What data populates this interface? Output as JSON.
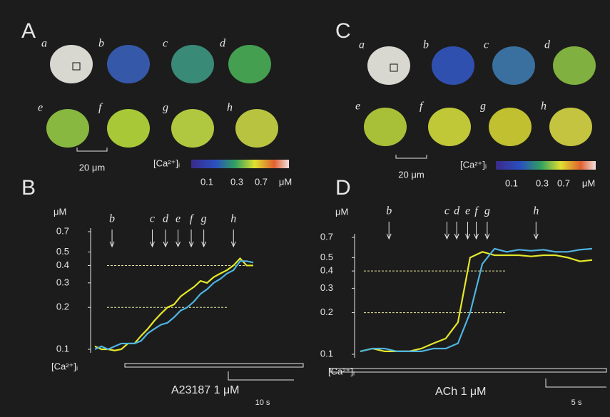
{
  "image_panels": [
    {
      "panel": "A",
      "cell_labels": [
        "a",
        "b",
        "c",
        "d",
        "e",
        "f",
        "g",
        "h"
      ],
      "scale_bar_label": "20 μm",
      "colorbar_label": "[Ca²⁺]ᵢ",
      "colorbar_ticks": [
        "0.1",
        "0.3",
        "0.7",
        "μM"
      ]
    },
    {
      "panel": "C",
      "cell_labels": [
        "a",
        "b",
        "c",
        "d",
        "e",
        "f",
        "g",
        "h"
      ],
      "scale_bar_label": "20 μm",
      "colorbar_label": "[Ca²⁺]ᵢ",
      "colorbar_ticks": [
        "0.1",
        "0.3",
        "0.7",
        "μM"
      ]
    }
  ],
  "chart_data": [
    {
      "type": "line",
      "panel": "B",
      "ylabel": "μM",
      "ylabel_bottom": "[Ca²⁺]ᵢ",
      "log_y": true,
      "ylim": [
        0.1,
        0.7
      ],
      "yticks": [
        0.1,
        0.2,
        0.3,
        0.4,
        0.5,
        0.7
      ],
      "xlim": [
        0,
        24
      ],
      "x": [
        0,
        1,
        2,
        3,
        4,
        5,
        6,
        7,
        8,
        9,
        10,
        11,
        12,
        13,
        14,
        15,
        16,
        17,
        18,
        19,
        20,
        21,
        22,
        23,
        24
      ],
      "series": [
        {
          "color": "#e4e82a",
          "values": [
            0.105,
            0.1,
            0.1,
            0.098,
            0.1,
            0.11,
            0.11,
            0.125,
            0.14,
            0.16,
            0.18,
            0.2,
            0.21,
            0.24,
            0.26,
            0.28,
            0.31,
            0.3,
            0.33,
            0.35,
            0.37,
            0.4,
            0.45,
            0.4,
            0.4
          ]
        },
        {
          "color": "#4fb4e0",
          "values": [
            0.1,
            0.105,
            0.1,
            0.105,
            0.11,
            0.11,
            0.11,
            0.115,
            0.13,
            0.14,
            0.15,
            0.155,
            0.17,
            0.19,
            0.2,
            0.22,
            0.25,
            0.27,
            0.3,
            0.32,
            0.35,
            0.37,
            0.43,
            0.43,
            0.42
          ]
        }
      ],
      "reference_lines": [
        0.4,
        0.2
      ],
      "annotations": [
        {
          "label": "b",
          "x": 2.6
        },
        {
          "label": "c",
          "x": 8.7
        },
        {
          "label": "d",
          "x": 10.7
        },
        {
          "label": "e",
          "x": 12.6
        },
        {
          "label": "f",
          "x": 14.6
        },
        {
          "label": "g",
          "x": 16.5
        },
        {
          "label": "h",
          "x": 21
        }
      ],
      "stimulus_label": "A23187  1 μM",
      "scale_bar_label": "10 s"
    },
    {
      "type": "line",
      "panel": "D",
      "ylabel": "μM",
      "ylabel_bottom": "[Ca²⁺]ᵢ",
      "log_y": true,
      "ylim": [
        0.1,
        0.7
      ],
      "yticks": [
        0.1,
        0.2,
        0.3,
        0.4,
        0.5,
        0.7
      ],
      "xlim": [
        0,
        19
      ],
      "x": [
        0,
        1,
        2,
        3,
        4,
        5,
        6,
        7,
        8,
        9,
        10,
        11,
        12,
        13,
        14,
        15,
        16,
        17,
        18,
        19
      ],
      "series": [
        {
          "color": "#e4e82a",
          "values": [
            0.105,
            0.11,
            0.105,
            0.105,
            0.105,
            0.11,
            0.12,
            0.13,
            0.17,
            0.5,
            0.55,
            0.52,
            0.52,
            0.52,
            0.51,
            0.52,
            0.52,
            0.5,
            0.47,
            0.48
          ]
        },
        {
          "color": "#4fb4e0",
          "values": [
            0.105,
            0.11,
            0.11,
            0.105,
            0.105,
            0.105,
            0.11,
            0.11,
            0.12,
            0.2,
            0.45,
            0.58,
            0.55,
            0.57,
            0.56,
            0.57,
            0.55,
            0.55,
            0.57,
            0.58
          ]
        }
      ],
      "reference_lines": [
        0.4,
        0.2
      ],
      "annotations": [
        {
          "label": "b",
          "x": 2.35
        },
        {
          "label": "c",
          "x": 7.1
        },
        {
          "label": "d",
          "x": 7.9
        },
        {
          "label": "e",
          "x": 8.8
        },
        {
          "label": "f",
          "x": 9.5
        },
        {
          "label": "g",
          "x": 10.4
        },
        {
          "label": "h",
          "x": 14.4
        }
      ],
      "stimulus_label": "ACh 1 μM",
      "scale_bar_label": "5 s"
    }
  ]
}
